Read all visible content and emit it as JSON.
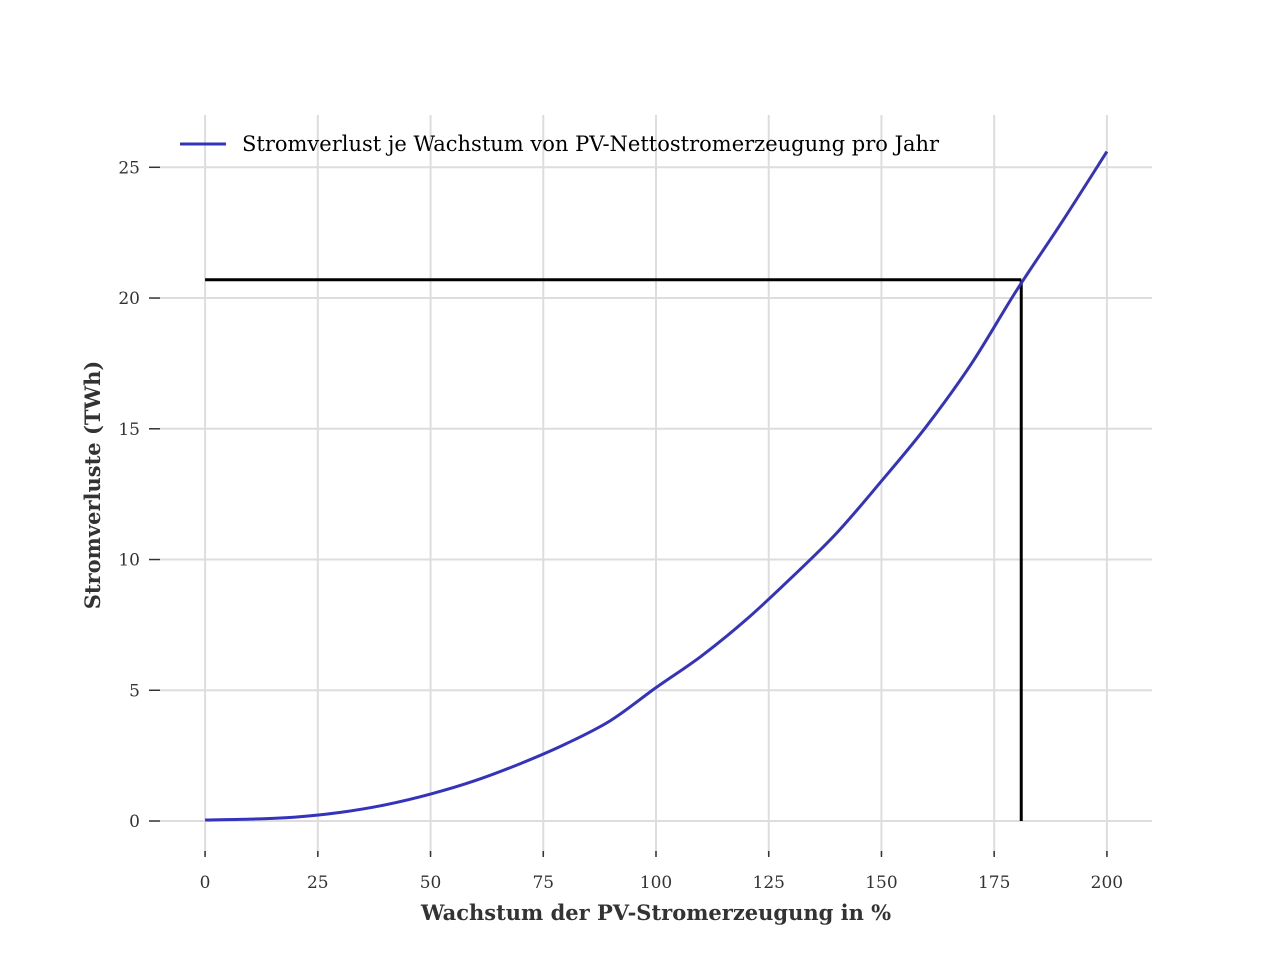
{
  "chart_data": {
    "type": "line",
    "title": "",
    "xlabel": "Wachstum der PV-Stromerzeugung in %",
    "ylabel": "Stromverluste (TWh)",
    "xlim": [
      -10,
      210
    ],
    "ylim": [
      -1.3,
      27
    ],
    "x_ticks": [
      0,
      25,
      50,
      75,
      100,
      125,
      150,
      175,
      200
    ],
    "y_ticks": [
      0,
      5,
      10,
      15,
      20,
      25
    ],
    "x_tick_labels": [
      "0",
      "25",
      "50",
      "75",
      "100",
      "125",
      "150",
      "175",
      "200"
    ],
    "y_tick_labels": [
      "0",
      "5",
      "10",
      "15",
      "20",
      "25"
    ],
    "grid": true,
    "legend_position": "top-left",
    "series": [
      {
        "name": "Stromverlust je Wachstum von PV-Nettostromerzeugung pro Jahr",
        "color": "#3333bb",
        "x": [
          0,
          10,
          20,
          30,
          40,
          50,
          60,
          70,
          80,
          90,
          100,
          110,
          120,
          130,
          140,
          150,
          160,
          170,
          180,
          190,
          200
        ],
        "y": [
          0.04,
          0.07,
          0.15,
          0.33,
          0.62,
          1.03,
          1.55,
          2.2,
          2.95,
          3.85,
          5.1,
          6.3,
          7.7,
          9.3,
          11.0,
          13.0,
          15.1,
          17.5,
          20.3,
          22.9,
          25.6
        ]
      }
    ],
    "reference_lines": {
      "color": "#000000",
      "horizontal_y": 20.7,
      "horizontal_x_range": [
        0,
        181
      ],
      "vertical_x": 181,
      "vertical_y_range": [
        0,
        20.7
      ]
    }
  }
}
